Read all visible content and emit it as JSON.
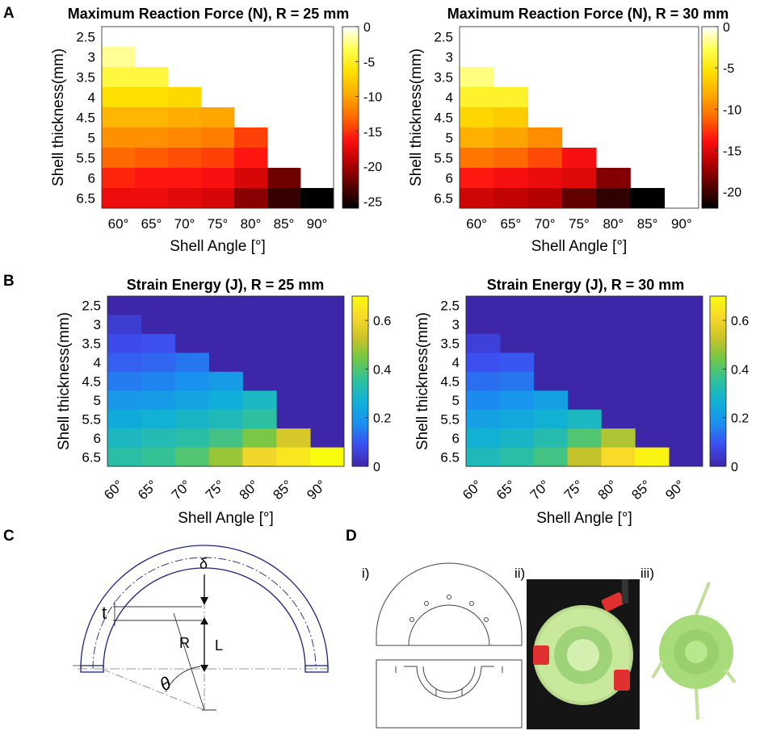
{
  "panel_labels": {
    "A": "A",
    "B": "B",
    "C": "C",
    "D": "D"
  },
  "colors": {
    "hot_scale": [
      "#000000",
      "#5a0000",
      "#b40000",
      "#ff1010",
      "#ff6a00",
      "#ffaa00",
      "#ffe000",
      "#ffff50",
      "#ffffff"
    ],
    "parula_scale": [
      "#3e26a8",
      "#3d4ef0",
      "#1a8ff0",
      "#10b0d8",
      "#2dc0a0",
      "#6cc84a",
      "#c9c228",
      "#f8d82a",
      "#f9fb0e"
    ],
    "diagram_stroke": "#1d237a",
    "mold_stroke": "#444444"
  },
  "chart_data": [
    {
      "id": "force-r25",
      "type": "heatmap",
      "title": "Maximum Reaction Force (N), R = 25 mm",
      "xlabel": "Shell Angle [°]",
      "ylabel": "Shell thickness(mm)",
      "categories_x": [
        "60°",
        "65°",
        "70°",
        "75°",
        "80°",
        "85°",
        "90°"
      ],
      "categories_y": [
        "2.5",
        "3",
        "3.5",
        "4",
        "4.5",
        "5",
        "5.5",
        "6",
        "6.5"
      ],
      "colormap": "hot",
      "clim": [
        -26,
        0
      ],
      "colorbar_ticks": [
        0,
        -5,
        -10,
        -15,
        -20,
        -25
      ],
      "empty_color": "#ffffff",
      "values": [
        [
          null,
          null,
          null,
          null,
          null,
          null,
          null
        ],
        [
          -2,
          null,
          null,
          null,
          null,
          null,
          null
        ],
        [
          -4,
          -4,
          null,
          null,
          null,
          null,
          null
        ],
        [
          -6.5,
          -6.5,
          -7,
          null,
          null,
          null,
          null
        ],
        [
          -9,
          -9,
          -9.5,
          -10,
          null,
          null,
          null
        ],
        [
          -11,
          -11,
          -11.5,
          -12,
          -14.5,
          null,
          null
        ],
        [
          -13,
          -13.5,
          -14,
          -14.5,
          -16,
          null,
          null
        ],
        [
          -15.5,
          -16,
          -16,
          -16.5,
          -18,
          -22,
          null
        ],
        [
          -17,
          -17,
          -17.5,
          -18,
          -21,
          -24,
          -26
        ]
      ]
    },
    {
      "id": "force-r30",
      "type": "heatmap",
      "title": "Maximum Reaction Force (N), R = 30 mm",
      "xlabel": "Shell Angle [°]",
      "ylabel": "Shell thickness(mm)",
      "categories_x": [
        "60°",
        "65°",
        "70°",
        "75°",
        "80°",
        "85°",
        "90°"
      ],
      "categories_y": [
        "2.5",
        "3",
        "3.5",
        "4",
        "4.5",
        "5",
        "5.5",
        "6",
        "6.5"
      ],
      "colormap": "hot",
      "clim": [
        -22,
        0
      ],
      "colorbar_ticks": [
        0,
        -5,
        -10,
        -15,
        -20
      ],
      "empty_color": "#ffffff",
      "values": [
        [
          null,
          null,
          null,
          null,
          null,
          null,
          null
        ],
        [
          null,
          null,
          null,
          null,
          null,
          null,
          null
        ],
        [
          -2,
          null,
          null,
          null,
          null,
          null,
          null
        ],
        [
          -4,
          -4,
          null,
          null,
          null,
          null,
          null
        ],
        [
          -6,
          -6.5,
          null,
          null,
          null,
          null,
          null
        ],
        [
          -8,
          -8.5,
          -9.5,
          null,
          null,
          null,
          null
        ],
        [
          -10.5,
          -11,
          -12,
          -14,
          null,
          null,
          null
        ],
        [
          -13.5,
          -14,
          -14.5,
          -15,
          -18,
          null,
          null
        ],
        [
          -15.5,
          -16,
          -16.5,
          -19,
          -20.5,
          -22,
          null
        ]
      ]
    },
    {
      "id": "energy-r25",
      "type": "heatmap",
      "title": "Strain Energy (J), R = 25 mm",
      "xlabel": "Shell Angle [°]",
      "ylabel": "Shell thickness(mm)",
      "categories_x": [
        "60°",
        "65°",
        "70°",
        "75°",
        "80°",
        "85°",
        "90°"
      ],
      "categories_y": [
        "2.5",
        "3",
        "3.5",
        "4",
        "4.5",
        "5",
        "5.5",
        "6",
        "6.5"
      ],
      "colormap": "parula",
      "clim": [
        0,
        0.7
      ],
      "colorbar_ticks": [
        0,
        0.2,
        0.4,
        0.6
      ],
      "empty_value": 0,
      "values": [
        [
          0,
          0,
          0,
          0,
          0,
          0,
          0
        ],
        [
          0.05,
          0,
          0,
          0,
          0,
          0,
          0
        ],
        [
          0.08,
          0.09,
          0,
          0,
          0,
          0,
          0
        ],
        [
          0.11,
          0.12,
          0.14,
          0,
          0,
          0,
          0
        ],
        [
          0.15,
          0.16,
          0.18,
          0.21,
          0,
          0,
          0
        ],
        [
          0.2,
          0.21,
          0.23,
          0.26,
          0.3,
          0,
          0
        ],
        [
          0.25,
          0.27,
          0.29,
          0.31,
          0.35,
          0,
          0
        ],
        [
          0.3,
          0.32,
          0.34,
          0.38,
          0.45,
          0.55,
          0
        ],
        [
          0.34,
          0.36,
          0.4,
          0.48,
          0.6,
          0.65,
          0.7
        ]
      ]
    },
    {
      "id": "energy-r30",
      "type": "heatmap",
      "title": "Strain Energy (J), R = 30 mm",
      "xlabel": "Shell Angle [°]",
      "ylabel": "Shell thickness(mm)",
      "categories_x": [
        "60°",
        "65°",
        "70°",
        "75°",
        "80°",
        "85°",
        "90°"
      ],
      "categories_y": [
        "2.5",
        "3",
        "3.5",
        "4",
        "4.5",
        "5",
        "5.5",
        "6",
        "6.5"
      ],
      "colormap": "parula",
      "clim": [
        0,
        0.7
      ],
      "colorbar_ticks": [
        0,
        0.2,
        0.4,
        0.6
      ],
      "empty_value": 0,
      "values": [
        [
          0,
          0,
          0,
          0,
          0,
          0,
          0
        ],
        [
          0,
          0,
          0,
          0,
          0,
          0,
          0
        ],
        [
          0.06,
          0,
          0,
          0,
          0,
          0,
          0
        ],
        [
          0.09,
          0.1,
          0,
          0,
          0,
          0,
          0
        ],
        [
          0.13,
          0.14,
          0,
          0,
          0,
          0,
          0
        ],
        [
          0.17,
          0.19,
          0.22,
          0,
          0,
          0,
          0
        ],
        [
          0.22,
          0.24,
          0.27,
          0.3,
          0,
          0,
          0
        ],
        [
          0.27,
          0.29,
          0.33,
          0.4,
          0.5,
          0,
          0
        ],
        [
          0.31,
          0.34,
          0.38,
          0.52,
          0.62,
          0.68,
          0
        ]
      ]
    }
  ],
  "diagram": {
    "labels": {
      "delta": "δ",
      "t": "t",
      "R": "R",
      "L": "L",
      "theta": "θ"
    }
  },
  "subpanels": {
    "i": "i)",
    "ii": "ii)",
    "iii": "iii)"
  }
}
